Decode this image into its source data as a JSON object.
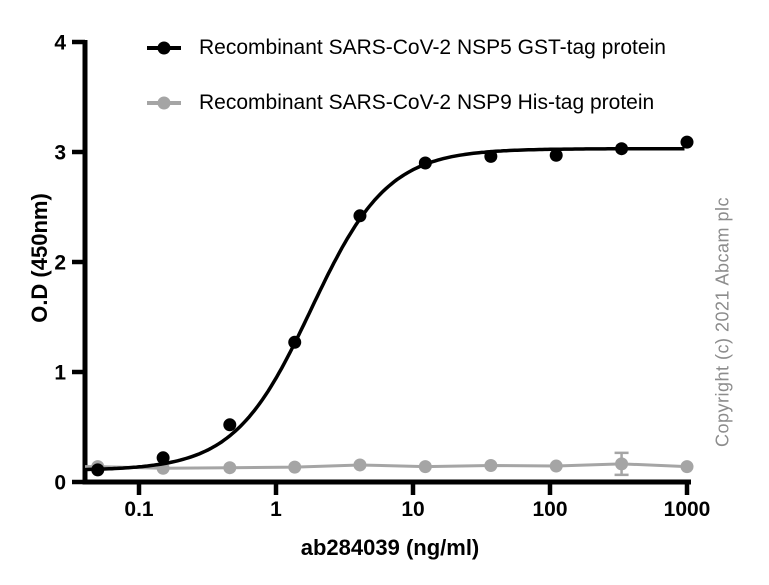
{
  "figure": {
    "copyright": "Copyright (c) 2021 Abcam plc",
    "background": "#ffffff"
  },
  "chart_data": {
    "type": "line",
    "title": "",
    "xlabel": "ab284039 (ng/ml)",
    "ylabel": "O.D (450nm)",
    "x_scale": "log",
    "xlim": [
      0.04,
      1000
    ],
    "ylim": [
      0,
      4
    ],
    "x_ticks": [
      0.1,
      1,
      10,
      100,
      1000
    ],
    "x_tick_labels": [
      "0.1",
      "1",
      "10",
      "100",
      "1000"
    ],
    "y_ticks": [
      0,
      1,
      2,
      3,
      4
    ],
    "y_tick_labels": [
      "0",
      "1",
      "2",
      "3",
      "4"
    ],
    "grid": false,
    "legend_position": "inside-top-left",
    "axis_color": "#000000",
    "x": [
      0.05,
      0.15,
      0.46,
      1.37,
      4.1,
      12.3,
      37,
      111,
      333,
      1000
    ],
    "series": [
      {
        "name": "Recombinant SARS-CoV-2 NSP5 GST-tag protein",
        "color": "#000000",
        "marker": "filled-circle",
        "values": [
          0.11,
          0.22,
          0.52,
          1.27,
          2.42,
          2.9,
          2.96,
          2.97,
          3.03,
          3.09
        ],
        "fit_curve": {
          "model": "4PL",
          "bottom": 0.105,
          "top": 3.03,
          "ec50": 1.8,
          "hill": 1.55
        }
      },
      {
        "name": "Recombinant SARS-CoV-2 NSP9 His-tag protein",
        "color": "#a5a5a5",
        "marker": "filled-circle",
        "values": [
          0.14,
          0.125,
          0.13,
          0.135,
          0.155,
          0.14,
          0.15,
          0.145,
          0.165,
          0.14
        ],
        "error_bars": [
          {
            "index": 8,
            "plus_minus": 0.1
          }
        ]
      }
    ]
  }
}
